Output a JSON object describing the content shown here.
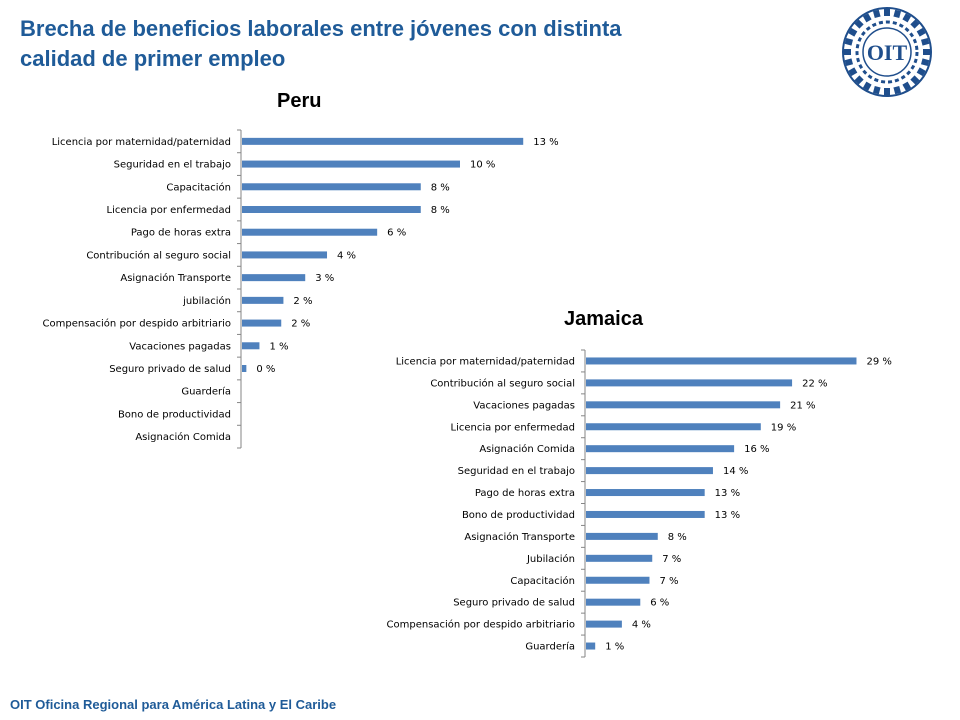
{
  "header": {
    "title_line1": "Brecha de beneficios laborales entre jóvenes con distinta",
    "title_line2": "calidad de primer empleo",
    "logo_text": "OIT"
  },
  "footer": {
    "text": "OIT Oficina Regional para América Latina y El Caribe"
  },
  "colors": {
    "title": "#1f5b98",
    "bar": "#4f81bd",
    "axis": "#868686"
  },
  "chart_data": [
    {
      "type": "bar",
      "orientation": "horizontal",
      "title": "Peru",
      "value_suffix": " %",
      "categories": [
        "Licencia por maternidad/paternidad",
        "Seguridad en el trabajo",
        "Capacitación",
        "Licencia por enfermedad",
        "Pago de horas extra",
        "Contribución al seguro social",
        "Asignación Transporte",
        "jubilación",
        "Compensación por despido arbitriario",
        "Vacaciones pagadas",
        "Seguro privado de salud",
        "Guardería",
        "Bono de productividad",
        "Asignación Comida"
      ],
      "values": [
        13,
        10,
        8,
        8,
        6,
        4,
        3,
        2,
        2,
        1,
        0,
        null,
        null,
        null
      ],
      "plotted": [
        12.9,
        10.0,
        8.2,
        8.2,
        6.2,
        3.9,
        2.9,
        1.9,
        1.8,
        0.8,
        0.2,
        0,
        0,
        0
      ],
      "legend": "none",
      "grid": false
    },
    {
      "type": "bar",
      "orientation": "horizontal",
      "title": "Jamaica",
      "value_suffix": " %",
      "categories": [
        "Licencia por maternidad/paternidad",
        "Contribución al seguro social",
        "Vacaciones pagadas",
        "Licencia por enfermedad",
        "Asignación Comida",
        "Seguridad en el trabajo",
        "Pago de horas extra",
        "Bono de productividad",
        "Asignación Transporte",
        "Jubilación",
        "Capacitación",
        "Seguro privado de salud",
        "Compensación por despido arbitriario",
        "Guardería"
      ],
      "values": [
        29,
        22,
        21,
        19,
        16,
        14,
        13,
        13,
        8,
        7,
        7,
        6,
        4,
        1
      ],
      "plotted": [
        29.4,
        22.4,
        21.1,
        19.0,
        16.1,
        13.8,
        12.9,
        12.9,
        7.8,
        7.2,
        6.9,
        5.9,
        3.9,
        1.0
      ],
      "legend": "none",
      "grid": false
    }
  ]
}
